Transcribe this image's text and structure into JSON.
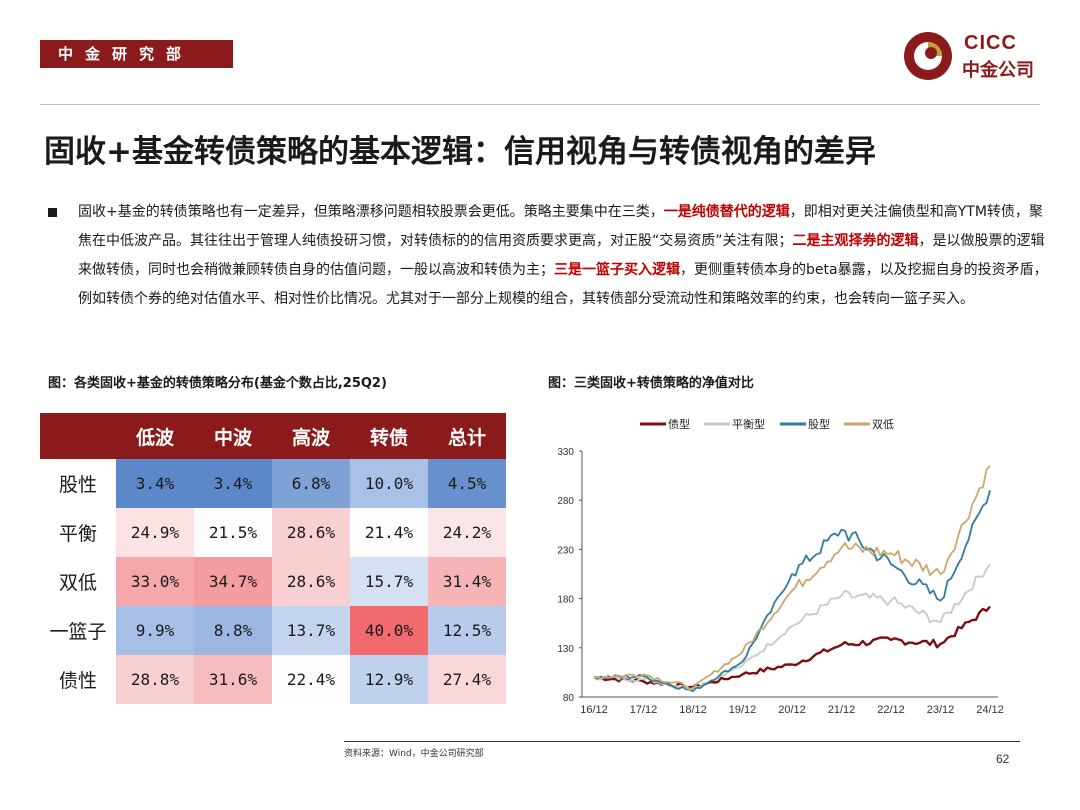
{
  "header": {
    "department": "中金研究部",
    "logo_en": "CICC",
    "logo_cn": "中金公司"
  },
  "title": "固收+基金转债策略的基本逻辑：信用视角与转债视角的差异",
  "paragraph": {
    "seg1": "固收+基金的转债策略也有一定差异，但策略漂移问题相较股票会更低。策略主要集中在三类，",
    "hl1": "一是纯债替代的逻辑",
    "seg2": "，即相对更关注偏债型和高YTM转债，聚焦在中低波产品。其往往出于管理人纯债投研习惯，对转债标的的信用资质要求更高，对正股“交易资质”关注有限；",
    "hl2": "二是主观择券的逻辑",
    "seg3": "，是以做股票的逻辑来做转债，同时也会稍微兼顾转债自身的估值问题，一般以高波和转债为主；",
    "hl3": "三是一篮子买入逻辑",
    "seg4": "，更侧重转债本身的beta暴露，以及挖掘自身的投资矛盾，例如转债个券的绝对估值水平、相对性价比情况。尤其对于一部分上规模的组合，其转债部分受流动性和策略效率的约束，也会转向一篮子买入。"
  },
  "left_figure": {
    "title": "图：各类固收+基金的转债策略分布(基金个数占比,25Q2)",
    "columns": [
      "低波",
      "中波",
      "高波",
      "转债",
      "总计"
    ],
    "rows": [
      {
        "label": "股性",
        "values": [
          "3.4%",
          "3.4%",
          "6.8%",
          "10.0%",
          "4.5%"
        ],
        "colors": [
          "#5b88c8",
          "#5b88c8",
          "#7ea2d6",
          "#a9c1e6",
          "#6790cc"
        ]
      },
      {
        "label": "平衡",
        "values": [
          "24.9%",
          "21.5%",
          "28.6%",
          "21.4%",
          "24.2%"
        ],
        "colors": [
          "#fbe3e4",
          "#fdfdfd",
          "#f9d0d2",
          "#fdfdfd",
          "#fbe6e7"
        ]
      },
      {
        "label": "双低",
        "values": [
          "33.0%",
          "34.7%",
          "28.6%",
          "15.7%",
          "31.4%"
        ],
        "colors": [
          "#f5a8ab",
          "#f49da0",
          "#f9d0d2",
          "#d5e0f3",
          "#f6b4b7"
        ]
      },
      {
        "label": "一篮子",
        "values": [
          "9.9%",
          "8.8%",
          "13.7%",
          "40.0%",
          "12.5%"
        ],
        "colors": [
          "#a7bfe5",
          "#9ab6e1",
          "#c3d4ee",
          "#f06a6e",
          "#b8cbeb"
        ]
      },
      {
        "label": "债性",
        "values": [
          "28.8%",
          "31.6%",
          "22.4%",
          "12.9%",
          "27.4%"
        ],
        "colors": [
          "#f9d0d2",
          "#f7bcbe",
          "#fdfdfd",
          "#bfd1ed",
          "#fad8da"
        ]
      }
    ]
  },
  "right_figure": {
    "title": "图：三类固收+转债策略的净值对比"
  },
  "chart_data": {
    "type": "line",
    "title": "",
    "x": [
      "16/12",
      "17/12",
      "18/12",
      "19/12",
      "20/12",
      "21/12",
      "22/12",
      "23/12",
      "24/12"
    ],
    "ylim": [
      80,
      330
    ],
    "yticks": [
      80,
      130,
      180,
      230,
      280,
      330
    ],
    "legend_position": "top",
    "series": [
      {
        "name": "债型",
        "color": "#7b0f12",
        "values": [
          100,
          96,
          90,
          103,
          113,
          133,
          138,
          134,
          172
        ]
      },
      {
        "name": "平衡型",
        "color": "#c9c9c3",
        "values": [
          100,
          98,
          89,
          112,
          152,
          183,
          178,
          156,
          215
        ]
      },
      {
        "name": "股型",
        "color": "#2f7d9a",
        "values": [
          100,
          101,
          86,
          116,
          205,
          250,
          215,
          178,
          290
        ]
      },
      {
        "name": "双低",
        "color": "#c9a86b",
        "values": [
          100,
          103,
          89,
          126,
          188,
          232,
          226,
          205,
          315
        ]
      }
    ]
  },
  "footer": {
    "source": "资料来源：Wind，中金公司研究部",
    "page": "62"
  }
}
